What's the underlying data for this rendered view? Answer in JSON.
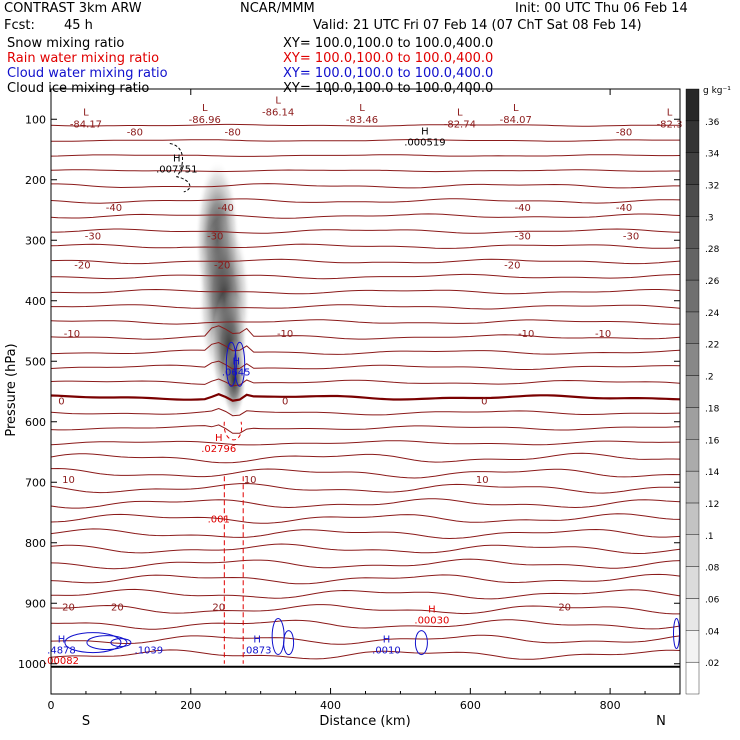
{
  "header": {
    "model": "CONTRAST  3km ARW",
    "org": "NCAR/MMM",
    "init": "Init: 00 UTC Thu 06 Feb 14",
    "fcst_label": "Fcst:",
    "fcst_value": "45 h",
    "valid": "Valid: 21 UTC Fri 07 Feb 14 (07 ChT Sat 08 Feb 14)"
  },
  "fields": [
    {
      "name": "Snow mixing ratio",
      "xy": "XY=  100.0,100.0  to  100.0,400.0",
      "color": "#000000"
    },
    {
      "name": "Rain water mixing ratio",
      "xy": "XY=  100.0,100.0  to  100.0,400.0",
      "color": "#e00000"
    },
    {
      "name": "Cloud water mixing ratio",
      "xy": "XY=  100.0,100.0  to  100.0,400.0",
      "color": "#1010cc"
    },
    {
      "name": "Cloud ice mixing ratio",
      "xy": "XY=  100.0,100.0  to  100.0,400.0",
      "color": "#000000"
    }
  ],
  "chart_data": {
    "type": "cross-section",
    "xlabel": "Distance (km)",
    "ylabel": "Pressure (hPa)",
    "xlim": [
      0,
      900
    ],
    "ylim": [
      1050,
      50
    ],
    "xticks": [
      0,
      200,
      400,
      600,
      800
    ],
    "yticks": [
      100,
      200,
      300,
      400,
      500,
      600,
      700,
      800,
      900,
      1000
    ],
    "x_end_labels": {
      "left": "S",
      "right": "N"
    },
    "colorbar": {
      "unit": "g kg⁻¹",
      "min": 0,
      "max": 0.38,
      "ticks": [
        ".02",
        ".04",
        ".06",
        ".08",
        ".1",
        ".12",
        ".14",
        ".16",
        ".18",
        ".2",
        ".22",
        ".24",
        ".26",
        ".28",
        ".3",
        ".32",
        ".34",
        ".36"
      ]
    },
    "temperature_contours": {
      "color": "#8b1a1a",
      "zero_color": "#7a0000",
      "levels": [
        {
          "label": "-80",
          "pressure": 120,
          "labels_at_x": [
            120,
            260,
            820
          ]
        },
        {
          "label": "-40",
          "pressure": 245,
          "labels_at_x": [
            90,
            250,
            675,
            820
          ]
        },
        {
          "label": "-30",
          "pressure": 292,
          "labels_at_x": [
            60,
            235,
            675,
            830
          ]
        },
        {
          "label": "-20",
          "pressure": 340,
          "labels_at_x": [
            45,
            245,
            660
          ]
        },
        {
          "label": "-10",
          "pressure": 453,
          "labels_at_x": [
            30,
            335,
            680,
            790
          ]
        },
        {
          "label": "0",
          "pressure": 565,
          "labels_at_x": [
            15,
            335,
            620
          ]
        },
        {
          "label": "10",
          "pressure": 695,
          "labels_at_x": [
            25,
            285,
            617
          ]
        },
        {
          "label": "20",
          "pressure": 905,
          "labels_at_x": [
            25,
            95,
            240,
            735
          ]
        }
      ]
    },
    "lows": [
      {
        "label": "L",
        "value": "-84.17",
        "x": 50,
        "p": 102
      },
      {
        "label": "L",
        "value": "-86.96",
        "x": 220,
        "p": 95
      },
      {
        "label": "L",
        "value": "-86.14",
        "x": 325,
        "p": 82
      },
      {
        "label": "L",
        "value": "-83.46",
        "x": 445,
        "p": 95
      },
      {
        "label": "L",
        "value": "-82.74",
        "x": 585,
        "p": 102
      },
      {
        "label": "L",
        "value": "-84.07",
        "x": 665,
        "p": 95
      },
      {
        "label": "L",
        "value": "-82.3",
        "x": 885,
        "p": 102
      }
    ],
    "maxima": [
      {
        "label": "H",
        "value": ".000519",
        "x": 535,
        "p": 135,
        "color": "#000000"
      },
      {
        "label": "H",
        "value": ".007751",
        "x": 180,
        "p": 180,
        "color": "#000000"
      },
      {
        "label": "H",
        "value": ".0645",
        "x": 265,
        "p": 515,
        "color": "#1010cc"
      },
      {
        "label": "H",
        "value": ".02796",
        "x": 240,
        "p": 642,
        "color": "#e00000"
      },
      {
        "label": "",
        "value": ".001",
        "x": 240,
        "p": 758,
        "color": "#e00000"
      },
      {
        "label": "H",
        "value": ".00030",
        "x": 545,
        "p": 925,
        "color": "#e00000"
      },
      {
        "label": "H",
        "value": ".4878",
        "x": 15,
        "p": 975,
        "color": "#1010cc"
      },
      {
        "label": "",
        "value": ".00082",
        "x": 15,
        "p": 992,
        "color": "#e00000"
      },
      {
        "label": "",
        "value": ".1039",
        "x": 140,
        "p": 975,
        "color": "#1010cc"
      },
      {
        "label": "H",
        "value": ".0873",
        "x": 295,
        "p": 975,
        "color": "#1010cc"
      },
      {
        "label": "H",
        "value": ".0010",
        "x": 480,
        "p": 975,
        "color": "#1010cc"
      }
    ]
  }
}
